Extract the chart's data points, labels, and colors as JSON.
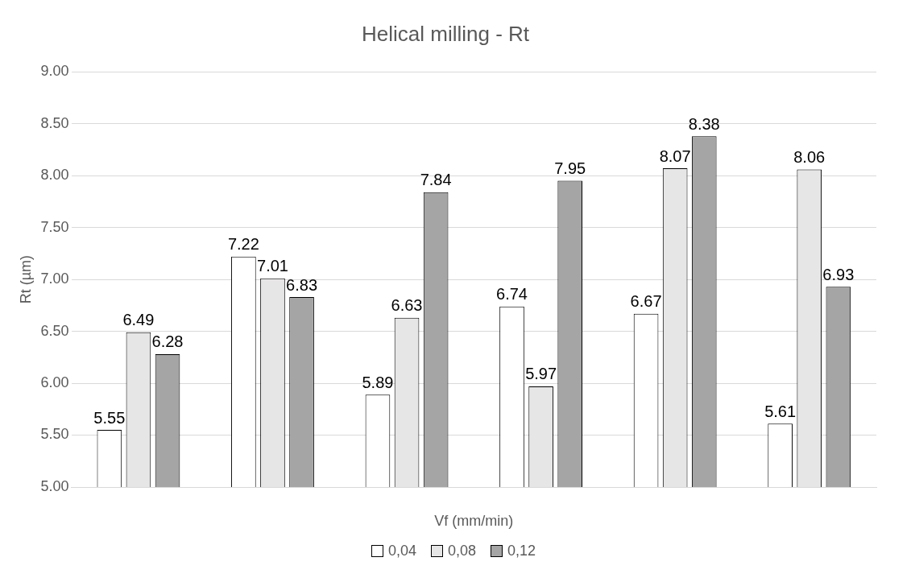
{
  "chart_data": {
    "type": "bar",
    "title": "Helical milling - Rt",
    "xlabel": "Vf (mm/min)",
    "ylabel": "Rt (µm)",
    "categories": [
      null,
      null,
      null,
      null,
      null,
      null
    ],
    "series": [
      {
        "name": "0,04",
        "color": "#ffffff",
        "values": [
          5.55,
          7.22,
          5.89,
          6.74,
          6.67,
          5.61
        ]
      },
      {
        "name": "0,08",
        "color": "#e7e6e6",
        "values": [
          6.49,
          7.01,
          6.63,
          5.97,
          8.07,
          8.06
        ]
      },
      {
        "name": "0,12",
        "color": "#a5a5a5",
        "values": [
          6.28,
          6.83,
          7.84,
          7.95,
          8.38,
          6.93
        ]
      }
    ],
    "ylim": [
      5,
      9
    ],
    "yticks": [
      {
        "value": 5,
        "label": "5.00"
      },
      {
        "value": 5.5,
        "label": "5.50"
      },
      {
        "value": 6,
        "label": "6.00"
      },
      {
        "value": 6.5,
        "label": "6.50"
      },
      {
        "value": 7,
        "label": "7.00"
      },
      {
        "value": 7.5,
        "label": "7.50"
      },
      {
        "value": 8,
        "label": "8.00"
      },
      {
        "value": 8.5,
        "label": "8.50"
      },
      {
        "value": 9,
        "label": "9.00"
      }
    ],
    "grid": "y",
    "legend": "bottom",
    "data_labels": true
  }
}
